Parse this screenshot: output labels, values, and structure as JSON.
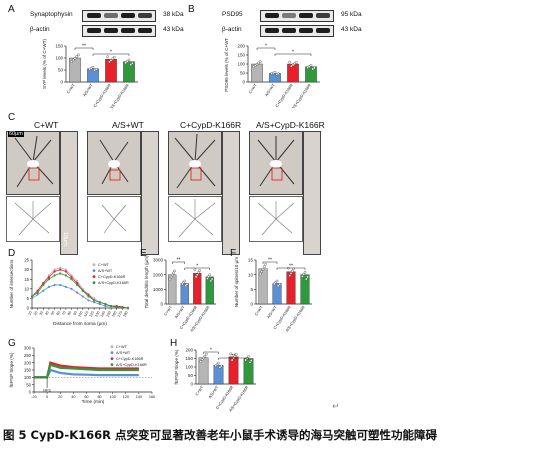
{
  "panels": {
    "A": {
      "letter": "A",
      "blots": [
        {
          "label": "Synaptophysin",
          "kda": "38 kDa"
        },
        {
          "label": "β-actin",
          "kda": "43 kDa"
        }
      ],
      "ylabel": "SYP levels (% of C+WT)"
    },
    "B": {
      "letter": "B",
      "blots": [
        {
          "label": "PSD95",
          "kda": "95 kDa"
        },
        {
          "label": "β-actin",
          "kda": "43 kDa"
        }
      ],
      "ylabel": "PSD95 levels (% of C+WT)"
    },
    "C": {
      "letter": "C",
      "titles": [
        "C+WT",
        "A/S+WT",
        "C+CypD-K166R",
        "A/S+CypD-K166R"
      ],
      "scale_top": "60μm",
      "scale_side": "10μm"
    },
    "D": {
      "letter": "D",
      "xlabel": "Distance from soma (μm)",
      "ylabel": "Number of intersections",
      "legend": [
        "C+WT",
        "A/S+WT",
        "C+CypD-K166R",
        "A/S+CypD-K166R"
      ]
    },
    "E": {
      "letter": "E",
      "ylabel": "Total dendritic length (μm)"
    },
    "F": {
      "letter": "F",
      "ylabel": "Number of spines/10 μm"
    },
    "G": {
      "letter": "G",
      "xlabel": "Time (min)",
      "ylabel": "fEPSP Slope (%)",
      "hfs": "HFS",
      "legend": [
        "C+WT",
        "A/S+WT",
        "C+CypD-K166R",
        "A/S+CypD-K166R"
      ]
    },
    "H": {
      "letter": "H",
      "ylabel": "fEPSP Slope (%)"
    }
  },
  "groups": [
    "C+WT",
    "A/S+WT",
    "C+CypD-K166R",
    "A/S+CypD-K166R"
  ],
  "colors": {
    "C+WT": "#b5b5b5",
    "A/S+WT": "#5b8fd6",
    "C+CypD-K166R": "#e8202a",
    "A/S+CypD-K166R": "#2e9a3c"
  },
  "caption": "图 5 CypD-K166R 点突变可显著改善老年小鼠手术诱导的海马突触可塑性功能障碍",
  "chart_data": [
    {
      "panel": "A",
      "type": "bar",
      "categories": [
        "C+WT",
        "A/S+WT",
        "C+CypD-K166R",
        "A/S+CypD-K166R"
      ],
      "values": [
        100,
        55,
        95,
        85
      ],
      "ylim": [
        0,
        150
      ],
      "yticks": [
        0,
        50,
        100,
        150
      ],
      "sig": [
        {
          "from": 0,
          "to": 1,
          "label": "**"
        },
        {
          "from": 1,
          "to": 3,
          "label": "*"
        }
      ]
    },
    {
      "panel": "B",
      "type": "bar",
      "categories": [
        "C+WT",
        "A/S+WT",
        "C+CypD-K166R",
        "A/S+CypD-K166R"
      ],
      "values": [
        100,
        48,
        100,
        85
      ],
      "ylim": [
        0,
        200
      ],
      "yticks": [
        0,
        50,
        100,
        150,
        200
      ],
      "sig": [
        {
          "from": 0,
          "to": 1,
          "label": "*"
        },
        {
          "from": 1,
          "to": 3,
          "label": "*"
        }
      ]
    },
    {
      "panel": "D",
      "type": "line",
      "x": [
        10,
        20,
        30,
        40,
        50,
        60,
        70,
        80,
        90,
        100,
        110,
        120,
        130,
        140,
        150,
        160,
        170,
        180
      ],
      "ylim": [
        0,
        25
      ],
      "yticks": [
        0,
        5,
        10,
        15,
        20,
        25
      ],
      "xticks": [
        10,
        20,
        30,
        40,
        50,
        60,
        70,
        80,
        90,
        100,
        110,
        120,
        130,
        140,
        150,
        160,
        170,
        180
      ],
      "series": [
        {
          "name": "C+WT",
          "values": [
            6,
            9,
            13,
            17,
            20,
            21,
            20,
            17,
            14,
            10,
            7,
            5,
            3,
            2,
            1,
            1,
            0.5,
            0
          ]
        },
        {
          "name": "A/S+WT",
          "values": [
            5,
            7,
            9,
            11,
            12,
            12,
            11,
            10,
            8,
            6,
            4,
            3,
            2,
            1,
            1,
            0.5,
            0,
            0
          ]
        },
        {
          "name": "C+CypD-K166R",
          "values": [
            6,
            9,
            13,
            16,
            19,
            20,
            19,
            16,
            13,
            9,
            7,
            4,
            3,
            2,
            1,
            1,
            0.5,
            0
          ]
        },
        {
          "name": "A/S+CypD-K166R",
          "values": [
            6,
            8,
            12,
            15,
            17,
            18,
            17,
            15,
            12,
            9,
            6,
            4,
            3,
            2,
            1,
            0.5,
            0,
            0
          ]
        }
      ]
    },
    {
      "panel": "E",
      "type": "bar",
      "categories": [
        "C+WT",
        "A/S+WT",
        "C+CypD-K166R",
        "A/S+CypD-K166R"
      ],
      "values": [
        2000,
        1400,
        2100,
        1850
      ],
      "ylim": [
        0,
        3000
      ],
      "yticks": [
        0,
        1000,
        2000,
        3000
      ],
      "sig": [
        {
          "from": 0,
          "to": 1,
          "label": "**"
        },
        {
          "from": 1,
          "to": 3,
          "label": "*"
        }
      ]
    },
    {
      "panel": "F",
      "type": "bar",
      "categories": [
        "C+WT",
        "A/S+WT",
        "C+CypD-K166R",
        "A/S+CypD-K166R"
      ],
      "values": [
        12,
        7,
        11,
        10
      ],
      "ylim": [
        0,
        15
      ],
      "yticks": [
        0,
        5,
        10,
        15
      ],
      "sig": [
        {
          "from": 0,
          "to": 1,
          "label": "**"
        },
        {
          "from": 1,
          "to": 3,
          "label": "**"
        }
      ]
    },
    {
      "panel": "G",
      "type": "line",
      "xlim": [
        -20,
        160
      ],
      "ylim": [
        0,
        300
      ],
      "yticks": [
        0,
        50,
        100,
        150,
        200,
        250,
        300
      ],
      "xticks": [
        -20,
        0,
        20,
        40,
        60,
        80,
        100,
        120,
        140,
        160
      ],
      "series": [
        {
          "name": "C+WT",
          "values": [
            100,
            100,
            195,
            175,
            165,
            160,
            158,
            155,
            155,
            155
          ]
        },
        {
          "name": "A/S+WT",
          "values": [
            100,
            100,
            150,
            130,
            120,
            118,
            115,
            115,
            115,
            115
          ]
        },
        {
          "name": "C+CypD-K166R",
          "values": [
            100,
            100,
            200,
            180,
            170,
            165,
            160,
            160,
            160,
            160
          ]
        },
        {
          "name": "A/S+CypD-K166R",
          "values": [
            100,
            100,
            185,
            165,
            160,
            155,
            150,
            150,
            150,
            150
          ]
        }
      ],
      "x": [
        -20,
        0,
        5,
        20,
        40,
        60,
        80,
        100,
        120,
        140
      ]
    },
    {
      "panel": "H",
      "type": "bar",
      "categories": [
        "C+WT",
        "A/S+WT",
        "C+CypD-K166R",
        "A/S+CypD-K166R"
      ],
      "values": [
        155,
        110,
        160,
        150
      ],
      "ylim": [
        0,
        200
      ],
      "yticks": [
        0,
        50,
        100,
        150,
        200
      ],
      "sig": [
        {
          "from": 0,
          "to": 1,
          "label": "*"
        },
        {
          "from": 1,
          "to": 3,
          "label": "**"
        }
      ]
    }
  ]
}
